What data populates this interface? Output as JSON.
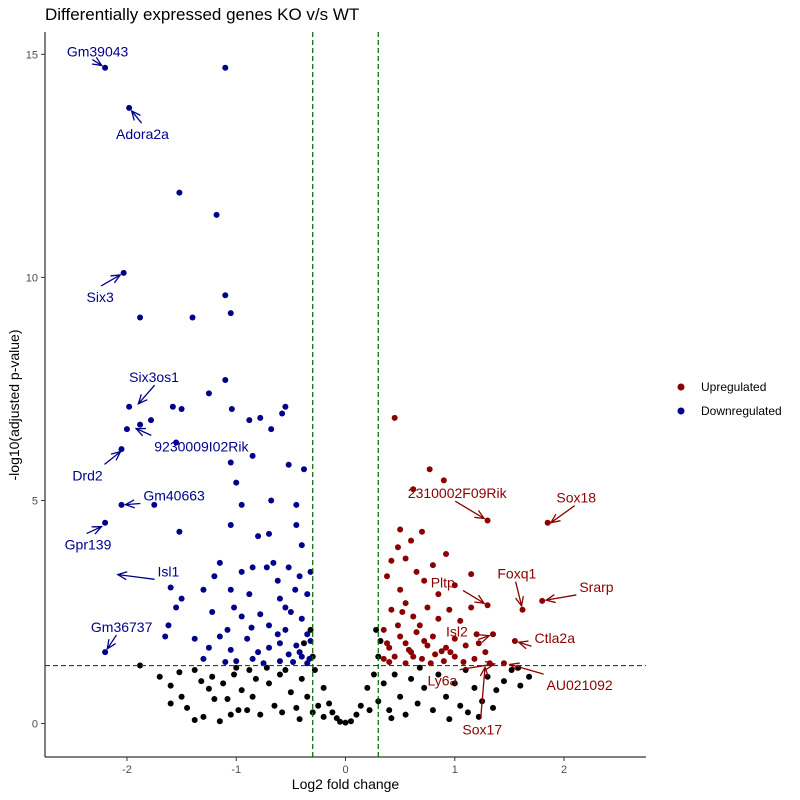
{
  "chart_data": {
    "type": "scatter",
    "title": "Differentially expressed genes KO v/s WT",
    "xlabel": "Log2 fold change",
    "ylabel": "-log10(adjusted p-value)",
    "xlim": [
      -2.75,
      2.75
    ],
    "ylim": [
      -0.75,
      15.5
    ],
    "x_ticks": [
      -2,
      -1,
      0,
      1,
      2
    ],
    "y_ticks": [
      0,
      5,
      10,
      15
    ],
    "grid": false,
    "legend_position": "right",
    "thresholds": {
      "x": [
        -0.3,
        0.3
      ],
      "y": 1.3,
      "style": "dashed",
      "color": "#006400"
    },
    "colors": {
      "up": "#8b0000",
      "down": "#00008b",
      "ns": "#000000"
    },
    "legend": [
      {
        "label": "Upregulated",
        "color": "#8b0000"
      },
      {
        "label": "Downregulated",
        "color": "#00008b"
      }
    ],
    "series": [
      {
        "key": "down",
        "points": [
          [
            -2.2,
            14.7
          ],
          [
            -1.1,
            14.7
          ],
          [
            -1.98,
            13.8
          ],
          [
            -1.52,
            11.9
          ],
          [
            -1.18,
            11.4
          ],
          [
            -2.03,
            10.1
          ],
          [
            -1.1,
            9.6
          ],
          [
            -1.05,
            9.2
          ],
          [
            -1.4,
            9.1
          ],
          [
            -1.88,
            9.1
          ],
          [
            -1.1,
            7.7
          ],
          [
            -1.25,
            7.4
          ],
          [
            -1.88,
            6.7
          ],
          [
            -1.98,
            7.1
          ],
          [
            -1.58,
            7.1
          ],
          [
            -1.78,
            6.8
          ],
          [
            -1.5,
            7.05
          ],
          [
            -1.04,
            7.05
          ],
          [
            -0.88,
            6.8
          ],
          [
            -0.78,
            6.85
          ],
          [
            -0.55,
            7.1
          ],
          [
            -0.58,
            6.95
          ],
          [
            -0.68,
            6.6
          ],
          [
            -2.0,
            6.6
          ],
          [
            -1.55,
            6.3
          ],
          [
            -2.05,
            6.15
          ],
          [
            -0.85,
            6.0
          ],
          [
            -1.05,
            5.85
          ],
          [
            -0.52,
            5.8
          ],
          [
            -0.38,
            5.7
          ],
          [
            -1.0,
            5.4
          ],
          [
            -2.05,
            4.9
          ],
          [
            -1.75,
            4.9
          ],
          [
            -0.95,
            4.9
          ],
          [
            -0.68,
            5.0
          ],
          [
            -0.45,
            4.9
          ],
          [
            -2.2,
            4.5
          ],
          [
            -1.52,
            4.3
          ],
          [
            -1.05,
            4.45
          ],
          [
            -0.45,
            4.45
          ],
          [
            -0.8,
            4.2
          ],
          [
            -0.7,
            4.25
          ],
          [
            -0.4,
            4.0
          ],
          [
            -1.15,
            3.6
          ],
          [
            -0.85,
            3.5
          ],
          [
            -0.72,
            3.5
          ],
          [
            -0.52,
            3.5
          ],
          [
            -0.32,
            3.4
          ],
          [
            -0.95,
            3.4
          ],
          [
            -1.2,
            3.3
          ],
          [
            -1.3,
            3.0
          ],
          [
            -0.62,
            3.2
          ],
          [
            -0.42,
            3.3
          ],
          [
            -1.6,
            3.05
          ],
          [
            -1.05,
            3.0
          ],
          [
            -1.5,
            2.8
          ],
          [
            -0.88,
            2.9
          ],
          [
            -0.6,
            2.8
          ],
          [
            -0.35,
            2.9
          ],
          [
            -1.55,
            2.6
          ],
          [
            -1.22,
            2.5
          ],
          [
            -0.95,
            2.4
          ],
          [
            -0.78,
            2.45
          ],
          [
            -0.5,
            2.5
          ],
          [
            -0.4,
            2.35
          ],
          [
            -1.62,
            2.2
          ],
          [
            -1.08,
            2.1
          ],
          [
            -0.7,
            2.2
          ],
          [
            -0.55,
            2.1
          ],
          [
            -0.35,
            2.0
          ],
          [
            -1.65,
            1.95
          ],
          [
            -1.38,
            1.9
          ],
          [
            -1.15,
            1.95
          ],
          [
            -0.9,
            1.9
          ],
          [
            -0.6,
            1.8
          ],
          [
            -0.45,
            1.75
          ],
          [
            -0.32,
            1.85
          ],
          [
            -1.25,
            1.7
          ],
          [
            -1.05,
            1.65
          ],
          [
            -0.8,
            1.6
          ],
          [
            -0.7,
            1.7
          ],
          [
            -0.52,
            1.55
          ],
          [
            -0.4,
            1.5
          ],
          [
            -0.33,
            1.45
          ],
          [
            -2.2,
            1.6
          ],
          [
            -1.3,
            1.45
          ],
          [
            -1.0,
            1.4
          ],
          [
            -0.85,
            1.45
          ],
          [
            -0.6,
            1.4
          ],
          [
            -0.48,
            1.38
          ],
          [
            -0.35,
            1.35
          ],
          [
            -1.1,
            1.38
          ],
          [
            -0.75,
            1.35
          ],
          [
            -0.42,
            1.6
          ],
          [
            -0.62,
            2.0
          ],
          [
            -0.86,
            2.15
          ],
          [
            -1.02,
            2.6
          ],
          [
            -0.55,
            2.6
          ],
          [
            -0.46,
            3.0
          ],
          [
            -0.66,
            3.6
          ]
        ]
      },
      {
        "key": "up",
        "points": [
          [
            0.45,
            6.85
          ],
          [
            0.77,
            5.7
          ],
          [
            0.9,
            5.45
          ],
          [
            0.62,
            5.25
          ],
          [
            1.3,
            4.55
          ],
          [
            1.85,
            4.5
          ],
          [
            0.5,
            4.35
          ],
          [
            0.7,
            4.3
          ],
          [
            0.6,
            4.1
          ],
          [
            0.48,
            3.95
          ],
          [
            0.92,
            3.8
          ],
          [
            0.42,
            3.65
          ],
          [
            0.55,
            3.7
          ],
          [
            0.8,
            3.55
          ],
          [
            0.65,
            3.4
          ],
          [
            1.15,
            3.35
          ],
          [
            0.38,
            3.3
          ],
          [
            0.72,
            3.2
          ],
          [
            1.0,
            3.1
          ],
          [
            0.5,
            3.0
          ],
          [
            0.85,
            2.9
          ],
          [
            1.3,
            2.65
          ],
          [
            1.62,
            2.55
          ],
          [
            1.8,
            2.75
          ],
          [
            1.15,
            2.6
          ],
          [
            0.95,
            2.55
          ],
          [
            0.75,
            2.6
          ],
          [
            0.55,
            2.7
          ],
          [
            0.42,
            2.55
          ],
          [
            0.62,
            2.4
          ],
          [
            0.85,
            2.35
          ],
          [
            1.05,
            2.3
          ],
          [
            0.48,
            2.2
          ],
          [
            1.35,
            2.0
          ],
          [
            1.55,
            1.85
          ],
          [
            1.2,
            2.0
          ],
          [
            1.0,
            1.9
          ],
          [
            0.8,
            1.95
          ],
          [
            0.65,
            2.05
          ],
          [
            0.5,
            1.95
          ],
          [
            0.35,
            2.1
          ],
          [
            0.55,
            1.8
          ],
          [
            0.75,
            1.75
          ],
          [
            0.92,
            1.7
          ],
          [
            1.1,
            1.75
          ],
          [
            1.28,
            1.6
          ],
          [
            0.4,
            1.7
          ],
          [
            0.6,
            1.6
          ],
          [
            0.82,
            1.55
          ],
          [
            1.0,
            1.5
          ],
          [
            1.18,
            1.45
          ],
          [
            1.45,
            1.35
          ],
          [
            1.32,
            1.35
          ],
          [
            0.45,
            1.5
          ],
          [
            0.7,
            1.45
          ],
          [
            0.9,
            1.4
          ],
          [
            1.08,
            1.38
          ],
          [
            0.35,
            1.45
          ],
          [
            0.55,
            1.35
          ],
          [
            0.78,
            1.35
          ],
          [
            0.4,
            1.38
          ],
          [
            0.62,
            1.5
          ],
          [
            0.52,
            2.5
          ],
          [
            0.68,
            2.2
          ],
          [
            0.58,
            1.65
          ],
          [
            0.88,
            1.62
          ],
          [
            1.22,
            1.8
          ],
          [
            0.38,
            1.8
          ],
          [
            0.72,
            1.85
          ],
          [
            0.96,
            1.6
          ]
        ]
      },
      {
        "key": "ns",
        "points": [
          [
            -1.88,
            1.3
          ],
          [
            -1.7,
            1.05
          ],
          [
            -1.6,
            0.85
          ],
          [
            -1.52,
            1.15
          ],
          [
            -1.38,
            1.2
          ],
          [
            -1.32,
            0.95
          ],
          [
            -1.25,
            0.78
          ],
          [
            -1.2,
            0.55
          ],
          [
            -1.22,
            1.05
          ],
          [
            -1.12,
            0.9
          ],
          [
            -1.08,
            0.55
          ],
          [
            -1.02,
            1.1
          ],
          [
            -0.95,
            0.75
          ],
          [
            -0.9,
            0.3
          ],
          [
            -1.3,
            0.15
          ],
          [
            -1.15,
            0.05
          ],
          [
            -1.38,
            0.08
          ],
          [
            -0.98,
            0.3
          ],
          [
            -0.85,
            0.6
          ],
          [
            -0.82,
            1.0
          ],
          [
            -0.78,
            0.2
          ],
          [
            -1.5,
            0.6
          ],
          [
            -1.45,
            0.35
          ],
          [
            -1.6,
            0.45
          ],
          [
            -1.0,
            1.25
          ],
          [
            -0.88,
            1.2
          ],
          [
            -0.7,
            0.9
          ],
          [
            -0.65,
            0.4
          ],
          [
            -0.6,
            1.1
          ],
          [
            -0.58,
            0.25
          ],
          [
            -0.5,
            0.7
          ],
          [
            -0.45,
            0.35
          ],
          [
            -0.4,
            1.0
          ],
          [
            -0.35,
            0.6
          ],
          [
            -0.3,
            0.25
          ],
          [
            -0.28,
            1.2
          ],
          [
            -0.25,
            0.4
          ],
          [
            -0.2,
            0.8
          ],
          [
            -0.2,
            0.15
          ],
          [
            -0.15,
            0.45
          ],
          [
            -0.12,
            0.25
          ],
          [
            -0.08,
            0.12
          ],
          [
            -0.05,
            0.04
          ],
          [
            0.0,
            0.02
          ],
          [
            0.05,
            0.05
          ],
          [
            0.1,
            0.2
          ],
          [
            0.14,
            0.4
          ],
          [
            0.2,
            0.8
          ],
          [
            0.22,
            0.3
          ],
          [
            0.26,
            1.1
          ],
          [
            0.3,
            0.5
          ],
          [
            0.35,
            0.9
          ],
          [
            0.4,
            0.3
          ],
          [
            0.45,
            1.1
          ],
          [
            0.5,
            0.6
          ],
          [
            0.55,
            0.2
          ],
          [
            0.6,
            1.0
          ],
          [
            0.66,
            0.45
          ],
          [
            0.72,
            0.8
          ],
          [
            0.8,
            0.3
          ],
          [
            0.85,
            1.1
          ],
          [
            0.92,
            0.6
          ],
          [
            1.0,
            0.9
          ],
          [
            1.05,
            0.4
          ],
          [
            1.1,
            1.2
          ],
          [
            1.18,
            0.8
          ],
          [
            1.25,
            0.5
          ],
          [
            1.3,
            1.05
          ],
          [
            1.38,
            0.75
          ],
          [
            1.45,
            0.95
          ],
          [
            1.52,
            1.2
          ],
          [
            1.6,
            0.85
          ],
          [
            1.68,
            1.05
          ],
          [
            1.58,
            1.25
          ],
          [
            1.22,
            0.15
          ],
          [
            0.95,
            0.1
          ],
          [
            1.35,
            0.35
          ],
          [
            -0.72,
            1.25
          ],
          [
            -0.55,
            1.2
          ],
          [
            0.68,
            1.25
          ],
          [
            -0.32,
            2.1
          ],
          [
            -0.38,
            1.8
          ],
          [
            -0.3,
            1.5
          ],
          [
            0.28,
            2.1
          ],
          [
            0.32,
            1.85
          ],
          [
            0.3,
            1.5
          ],
          [
            -0.42,
            0.1
          ],
          [
            0.42,
            0.12
          ],
          [
            -1.05,
            0.2
          ],
          [
            1.12,
            0.25
          ]
        ]
      }
    ],
    "annotations": [
      {
        "text": "Gm39043",
        "x": -2.2,
        "y": 14.7,
        "color": "down"
      },
      {
        "text": "Adora2a",
        "x": -1.98,
        "y": 13.8,
        "color": "down"
      },
      {
        "text": "Six3",
        "x": -2.03,
        "y": 10.1,
        "color": "down"
      },
      {
        "text": "Six3os1",
        "x": -1.92,
        "y": 7.1,
        "color": "down"
      },
      {
        "text": "9230009I02Rik",
        "x": -1.95,
        "y": 6.65,
        "color": "down"
      },
      {
        "text": "Drd2",
        "x": -2.03,
        "y": 6.15,
        "color": "down"
      },
      {
        "text": "Gm40663",
        "x": -2.05,
        "y": 4.9,
        "color": "down"
      },
      {
        "text": "Gpr139",
        "x": -2.2,
        "y": 4.45,
        "color": "down"
      },
      {
        "text": "Isl1",
        "x": -2.12,
        "y": 3.35,
        "color": "down"
      },
      {
        "text": "Gm36737",
        "x": -2.2,
        "y": 1.6,
        "color": "down"
      },
      {
        "text": "2310002F09Rik",
        "x": 1.3,
        "y": 4.55,
        "color": "up"
      },
      {
        "text": "Sox18",
        "x": 1.85,
        "y": 4.45,
        "color": "up"
      },
      {
        "text": "Foxq1",
        "x": 1.62,
        "y": 2.55,
        "color": "up"
      },
      {
        "text": "Srarp",
        "x": 1.8,
        "y": 2.75,
        "color": "up"
      },
      {
        "text": "Pltp",
        "x": 1.3,
        "y": 2.65,
        "color": "up"
      },
      {
        "text": "Isl2",
        "x": 1.35,
        "y": 2.0,
        "color": "up"
      },
      {
        "text": "Ctla2a",
        "x": 1.55,
        "y": 1.85,
        "color": "up"
      },
      {
        "text": "Ly6a",
        "x": 1.4,
        "y": 1.35,
        "color": "up"
      },
      {
        "text": "AU021092",
        "x": 1.47,
        "y": 1.35,
        "color": "up"
      },
      {
        "text": "Sox17",
        "x": 1.28,
        "y": 1.35,
        "color": "up"
      }
    ]
  }
}
